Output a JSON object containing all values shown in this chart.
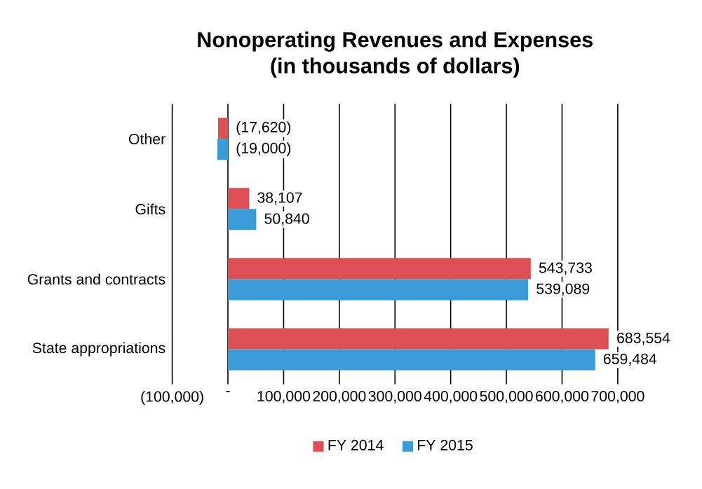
{
  "chart_data": {
    "type": "bar",
    "orientation": "horizontal",
    "title": "Nonoperating Revenues and Expenses\n(in thousands of dollars)",
    "categories": [
      "Other",
      "Gifts",
      "Grants and contracts",
      "State appropriations"
    ],
    "series": [
      {
        "name": "FY 2014",
        "color": "#dc4f55",
        "values": [
          -17620,
          38107,
          543733,
          683554
        ],
        "value_labels": [
          "(17,620)",
          "38,107",
          "543,733",
          "683,554"
        ]
      },
      {
        "name": "FY 2015",
        "color": "#3b9bd6",
        "values": [
          -19000,
          50840,
          539089,
          659484
        ],
        "value_labels": [
          "(19,000)",
          "50,840",
          "539,089",
          "659,484"
        ]
      }
    ],
    "xlim": [
      -100000,
      700000
    ],
    "xticks": [
      {
        "value": -100000,
        "label": "(100,000)"
      },
      {
        "value": 0,
        "label": "-"
      },
      {
        "value": 100000,
        "label": "100,000"
      },
      {
        "value": 200000,
        "label": "200,000"
      },
      {
        "value": 300000,
        "label": "300,000"
      },
      {
        "value": 400000,
        "label": "400,000"
      },
      {
        "value": 500000,
        "label": "500,000"
      },
      {
        "value": 600000,
        "label": "600,000"
      },
      {
        "value": 700000,
        "label": "700,000"
      }
    ],
    "grid": "x",
    "legend": "bottom"
  }
}
